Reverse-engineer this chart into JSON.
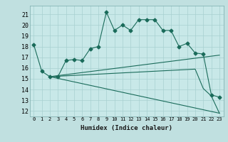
{
  "xlabel": "Humidex (Indice chaleur)",
  "xlim": [
    -0.5,
    23.5
  ],
  "ylim": [
    11.5,
    21.8
  ],
  "yticks": [
    12,
    13,
    14,
    15,
    16,
    17,
    18,
    19,
    20,
    21
  ],
  "xticks": [
    0,
    1,
    2,
    3,
    4,
    5,
    6,
    7,
    8,
    9,
    10,
    11,
    12,
    13,
    14,
    15,
    16,
    17,
    18,
    19,
    20,
    21,
    22,
    23
  ],
  "bg_color": "#c0e0e0",
  "plot_bg_color": "#c8e8e8",
  "line_color": "#1a6b5a",
  "grid_color": "#a8d0d0",
  "xlabel_bg": "#a0c8c8",
  "line1": {
    "x": [
      0,
      1,
      2,
      3,
      4,
      5,
      6,
      7,
      8,
      9,
      10,
      11,
      12,
      13,
      14,
      15,
      16,
      17,
      18,
      19,
      20,
      21,
      22,
      23
    ],
    "y": [
      18.2,
      15.7,
      15.2,
      15.2,
      16.7,
      16.8,
      16.7,
      17.8,
      18.0,
      21.2,
      19.5,
      20.0,
      19.5,
      20.5,
      20.5,
      20.5,
      19.5,
      19.5,
      18.0,
      18.3,
      17.4,
      17.3,
      13.5,
      13.3
    ]
  },
  "line2": {
    "x": [
      2,
      23
    ],
    "y": [
      15.2,
      17.2
    ]
  },
  "line3": {
    "x": [
      2,
      20,
      21,
      22,
      23
    ],
    "y": [
      15.2,
      15.9,
      14.1,
      13.4,
      11.8
    ]
  },
  "line4": {
    "x": [
      2,
      23
    ],
    "y": [
      15.2,
      11.8
    ]
  }
}
